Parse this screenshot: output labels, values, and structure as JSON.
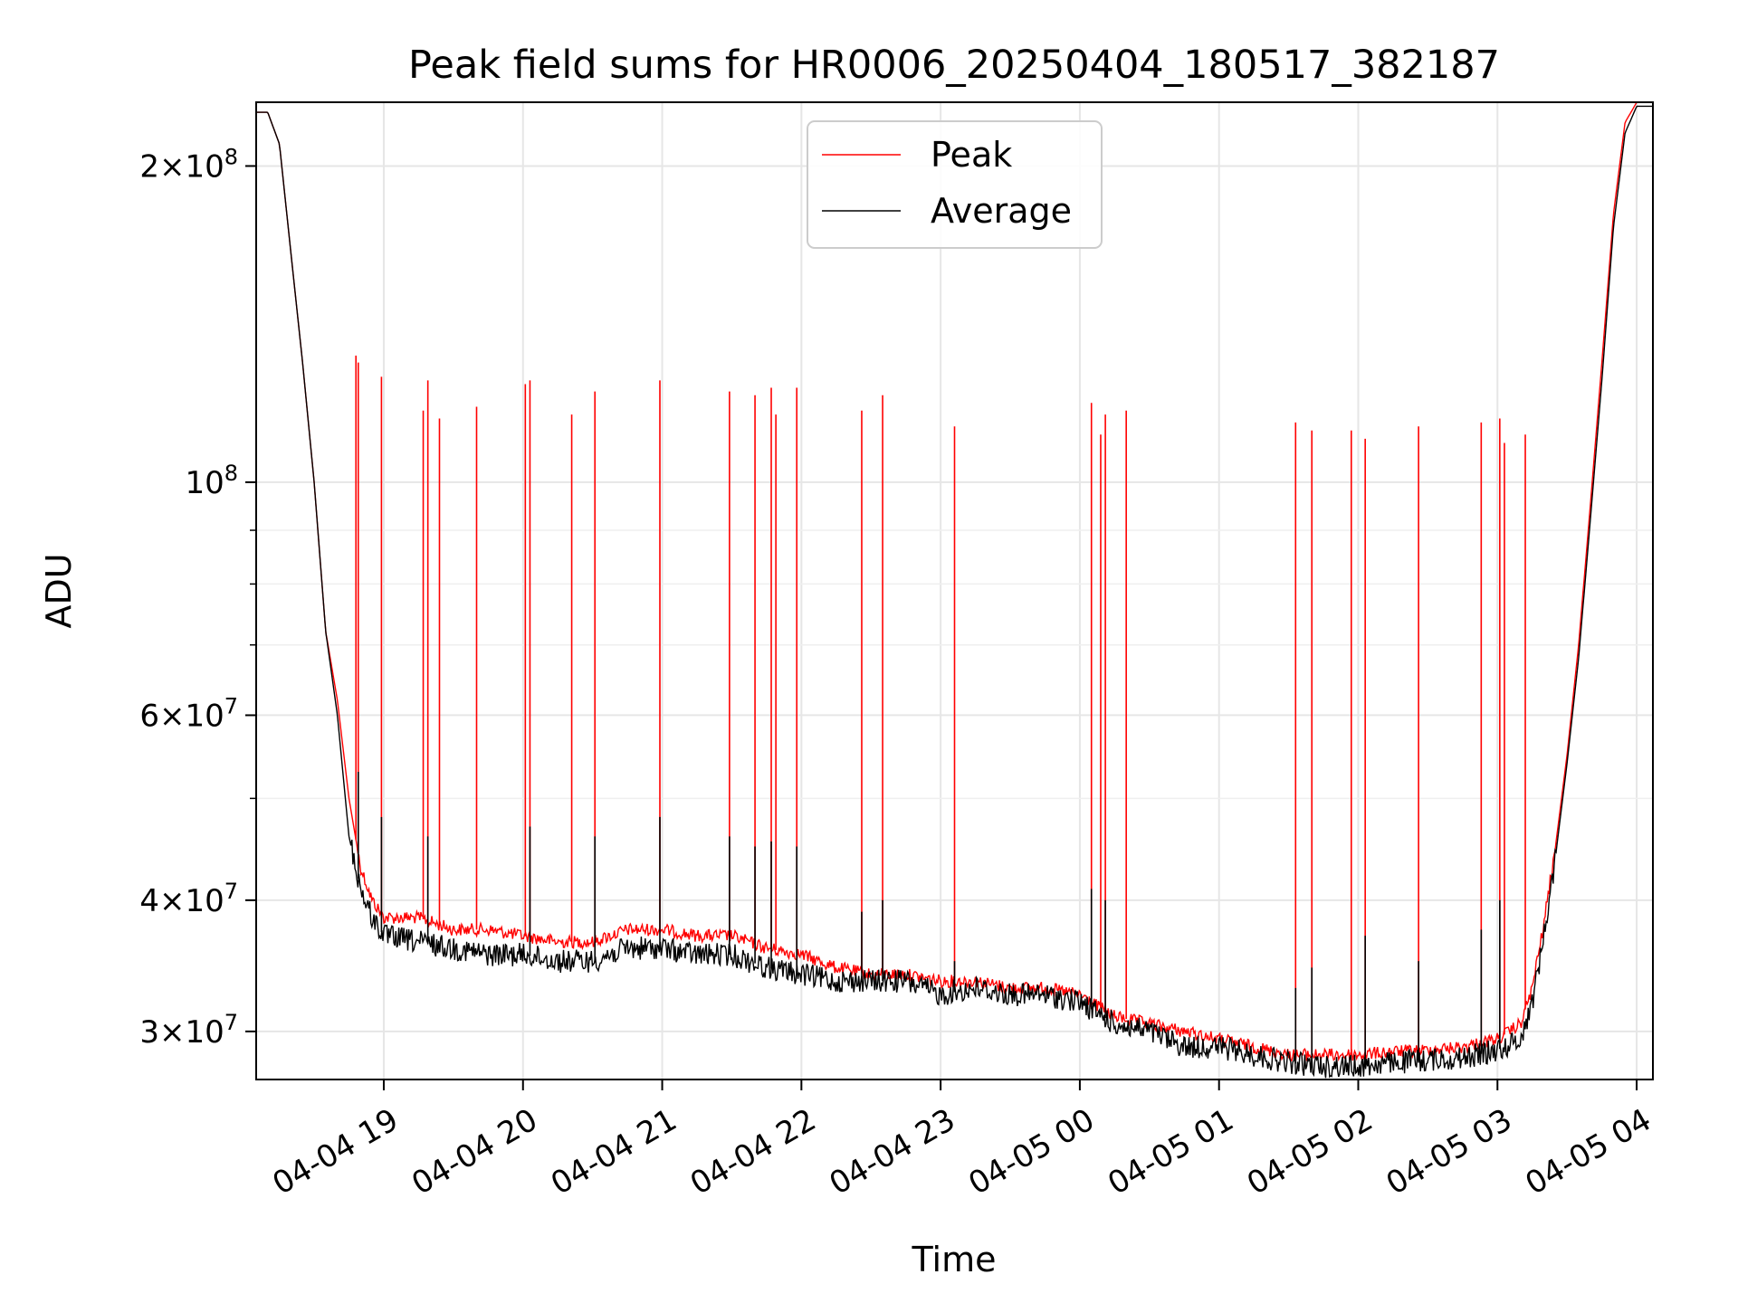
{
  "chart_data": {
    "type": "line",
    "title": "Peak field sums for HR0006_20250404_180517_382187",
    "xlabel": "Time",
    "ylabel": "ADU",
    "y_scale": "log",
    "ylim": [
      27000000,
      230000000
    ],
    "xlim": [
      "2025-04-04 18:05",
      "2025-04-05 04:07"
    ],
    "grid": true,
    "legend_position": "top-center",
    "x_ticks": [
      {
        "value": "2025-04-04 19:00",
        "label": "04-04 19"
      },
      {
        "value": "2025-04-04 20:00",
        "label": "04-04 20"
      },
      {
        "value": "2025-04-04 21:00",
        "label": "04-04 21"
      },
      {
        "value": "2025-04-04 22:00",
        "label": "04-04 22"
      },
      {
        "value": "2025-04-04 23:00",
        "label": "04-04 23"
      },
      {
        "value": "2025-04-05 00:00",
        "label": "04-05 00"
      },
      {
        "value": "2025-04-05 01:00",
        "label": "04-05 01"
      },
      {
        "value": "2025-04-05 02:00",
        "label": "04-05 02"
      },
      {
        "value": "2025-04-05 03:00",
        "label": "04-05 03"
      },
      {
        "value": "2025-04-05 04:00",
        "label": "04-05 04"
      }
    ],
    "y_ticks": [
      {
        "value": 30000000,
        "coef": "3",
        "exp": "7"
      },
      {
        "value": 40000000,
        "coef": "4",
        "exp": "7"
      },
      {
        "value": 60000000,
        "coef": "6",
        "exp": "7"
      },
      {
        "value": 100000000,
        "coef": "",
        "exp": "8"
      },
      {
        "value": 200000000,
        "coef": "2",
        "exp": "8"
      }
    ],
    "y_minor_ticks": [
      50000000,
      70000000,
      80000000,
      90000000
    ],
    "series": [
      {
        "name": "Peak",
        "color": "#ff0000",
        "x": [
          "2025-04-04 18:05",
          "2025-04-04 18:10",
          "2025-04-04 18:15",
          "2025-04-04 18:20",
          "2025-04-04 18:25",
          "2025-04-04 18:30",
          "2025-04-04 18:35",
          "2025-04-04 18:40",
          "2025-04-04 18:45",
          "2025-04-04 18:50",
          "2025-04-04 18:55",
          "2025-04-04 19:00",
          "2025-04-04 19:15",
          "2025-04-04 19:30",
          "2025-04-04 19:45",
          "2025-04-04 20:00",
          "2025-04-04 20:15",
          "2025-04-04 20:30",
          "2025-04-04 20:45",
          "2025-04-04 21:00",
          "2025-04-04 21:15",
          "2025-04-04 21:30",
          "2025-04-04 21:45",
          "2025-04-04 22:00",
          "2025-04-04 22:15",
          "2025-04-04 22:30",
          "2025-04-04 22:45",
          "2025-04-04 23:00",
          "2025-04-04 23:15",
          "2025-04-04 23:30",
          "2025-04-04 23:45",
          "2025-04-05 00:00",
          "2025-04-05 00:15",
          "2025-04-05 00:30",
          "2025-04-05 00:45",
          "2025-04-05 01:00",
          "2025-04-05 01:15",
          "2025-04-05 01:30",
          "2025-04-05 01:45",
          "2025-04-05 02:00",
          "2025-04-05 02:15",
          "2025-04-05 02:30",
          "2025-04-05 02:45",
          "2025-04-05 03:00",
          "2025-04-05 03:10",
          "2025-04-05 03:15",
          "2025-04-05 03:20",
          "2025-04-05 03:25",
          "2025-04-05 03:30",
          "2025-04-05 03:35",
          "2025-04-05 03:40",
          "2025-04-05 03:45",
          "2025-04-05 03:50",
          "2025-04-05 03:55",
          "2025-04-05 04:00",
          "2025-04-05 04:07"
        ],
        "values": [
          225000000,
          225000000,
          210000000,
          165000000,
          130000000,
          100000000,
          72000000,
          62000000,
          50000000,
          43000000,
          40000000,
          38500000,
          38500000,
          37500000,
          37500000,
          37000000,
          36500000,
          36500000,
          37500000,
          37500000,
          37000000,
          37000000,
          36000000,
          35500000,
          34500000,
          34000000,
          34000000,
          33500000,
          33500000,
          33000000,
          33000000,
          32500000,
          31000000,
          30500000,
          30000000,
          29500000,
          29000000,
          28500000,
          28500000,
          28500000,
          28700000,
          28800000,
          29000000,
          29500000,
          30500000,
          33000000,
          38000000,
          45000000,
          55000000,
          70000000,
          95000000,
          130000000,
          180000000,
          220000000,
          230000000,
          230000000
        ],
        "spikes": [
          {
            "x": "2025-04-04 18:48",
            "y": 132000000
          },
          {
            "x": "2025-04-04 18:49",
            "y": 130000000
          },
          {
            "x": "2025-04-04 18:59",
            "y": 126000000
          },
          {
            "x": "2025-04-04 19:17",
            "y": 117000000
          },
          {
            "x": "2025-04-04 19:19",
            "y": 125000000
          },
          {
            "x": "2025-04-04 19:24",
            "y": 115000000
          },
          {
            "x": "2025-04-04 19:40",
            "y": 118000000
          },
          {
            "x": "2025-04-04 20:01",
            "y": 124000000
          },
          {
            "x": "2025-04-04 20:03",
            "y": 125000000
          },
          {
            "x": "2025-04-04 20:21",
            "y": 116000000
          },
          {
            "x": "2025-04-04 20:31",
            "y": 122000000
          },
          {
            "x": "2025-04-04 20:59",
            "y": 125000000
          },
          {
            "x": "2025-04-04 21:29",
            "y": 122000000
          },
          {
            "x": "2025-04-04 21:40",
            "y": 121000000
          },
          {
            "x": "2025-04-04 21:47",
            "y": 123000000
          },
          {
            "x": "2025-04-04 21:49",
            "y": 116000000
          },
          {
            "x": "2025-04-04 21:58",
            "y": 123000000
          },
          {
            "x": "2025-04-04 22:26",
            "y": 117000000
          },
          {
            "x": "2025-04-04 22:35",
            "y": 121000000
          },
          {
            "x": "2025-04-04 23:06",
            "y": 113000000
          },
          {
            "x": "2025-04-05 00:05",
            "y": 119000000
          },
          {
            "x": "2025-04-05 00:09",
            "y": 111000000
          },
          {
            "x": "2025-04-05 00:11",
            "y": 116000000
          },
          {
            "x": "2025-04-05 00:20",
            "y": 117000000
          },
          {
            "x": "2025-04-05 01:33",
            "y": 114000000
          },
          {
            "x": "2025-04-05 01:40",
            "y": 112000000
          },
          {
            "x": "2025-04-05 01:57",
            "y": 112000000
          },
          {
            "x": "2025-04-05 02:03",
            "y": 110000000
          },
          {
            "x": "2025-04-05 02:26",
            "y": 113000000
          },
          {
            "x": "2025-04-05 02:53",
            "y": 114000000
          },
          {
            "x": "2025-04-05 03:01",
            "y": 115000000
          },
          {
            "x": "2025-04-05 03:03",
            "y": 109000000
          },
          {
            "x": "2025-04-05 03:12",
            "y": 111000000
          }
        ]
      },
      {
        "name": "Average",
        "color": "#000000",
        "x": [
          "2025-04-04 18:05",
          "2025-04-04 18:10",
          "2025-04-04 18:15",
          "2025-04-04 18:20",
          "2025-04-04 18:25",
          "2025-04-04 18:30",
          "2025-04-04 18:35",
          "2025-04-04 18:40",
          "2025-04-04 18:45",
          "2025-04-04 18:50",
          "2025-04-04 18:55",
          "2025-04-04 19:00",
          "2025-04-04 19:15",
          "2025-04-04 19:30",
          "2025-04-04 19:45",
          "2025-04-04 20:00",
          "2025-04-04 20:15",
          "2025-04-04 20:30",
          "2025-04-04 20:45",
          "2025-04-04 21:00",
          "2025-04-04 21:15",
          "2025-04-04 21:30",
          "2025-04-04 21:45",
          "2025-04-04 22:00",
          "2025-04-04 22:15",
          "2025-04-04 22:30",
          "2025-04-04 22:45",
          "2025-04-04 23:00",
          "2025-04-04 23:15",
          "2025-04-04 23:30",
          "2025-04-04 23:45",
          "2025-04-05 00:00",
          "2025-04-05 00:15",
          "2025-04-05 00:30",
          "2025-04-05 00:45",
          "2025-04-05 01:00",
          "2025-04-05 01:15",
          "2025-04-05 01:30",
          "2025-04-05 01:45",
          "2025-04-05 02:00",
          "2025-04-05 02:15",
          "2025-04-05 02:30",
          "2025-04-05 02:45",
          "2025-04-05 03:00",
          "2025-04-05 03:10",
          "2025-04-05 03:15",
          "2025-04-05 03:20",
          "2025-04-05 03:25",
          "2025-04-05 03:30",
          "2025-04-05 03:35",
          "2025-04-05 03:40",
          "2025-04-05 03:45",
          "2025-04-05 03:50",
          "2025-04-05 03:55",
          "2025-04-05 04:00",
          "2025-04-05 04:07"
        ],
        "values": [
          225000000,
          225000000,
          210000000,
          165000000,
          130000000,
          100000000,
          72000000,
          60000000,
          46000000,
          41000000,
          38500000,
          37000000,
          36500000,
          36000000,
          35500000,
          35500000,
          35000000,
          35000000,
          36000000,
          36000000,
          35500000,
          35500000,
          34500000,
          34000000,
          33500000,
          33500000,
          33500000,
          32500000,
          33000000,
          32500000,
          32500000,
          32000000,
          30500000,
          30000000,
          29000000,
          29000000,
          28500000,
          28000000,
          27800000,
          27800000,
          28000000,
          28200000,
          28300000,
          28800000,
          29500000,
          32000000,
          37000000,
          44000000,
          54000000,
          68000000,
          92000000,
          125000000,
          175000000,
          215000000,
          228000000,
          228000000
        ],
        "spikes": [
          {
            "x": "2025-04-04 18:49",
            "y": 53000000
          },
          {
            "x": "2025-04-04 18:59",
            "y": 48000000
          },
          {
            "x": "2025-04-04 19:19",
            "y": 46000000
          },
          {
            "x": "2025-04-04 20:03",
            "y": 47000000
          },
          {
            "x": "2025-04-04 20:31",
            "y": 46000000
          },
          {
            "x": "2025-04-04 20:59",
            "y": 48000000
          },
          {
            "x": "2025-04-04 21:29",
            "y": 46000000
          },
          {
            "x": "2025-04-04 21:40",
            "y": 45000000
          },
          {
            "x": "2025-04-04 21:47",
            "y": 45500000
          },
          {
            "x": "2025-04-04 21:58",
            "y": 45000000
          },
          {
            "x": "2025-04-04 22:26",
            "y": 39000000
          },
          {
            "x": "2025-04-04 22:35",
            "y": 40000000
          },
          {
            "x": "2025-04-04 23:06",
            "y": 35000000
          },
          {
            "x": "2025-04-05 00:05",
            "y": 41000000
          },
          {
            "x": "2025-04-05 00:11",
            "y": 40000000
          },
          {
            "x": "2025-04-05 01:33",
            "y": 33000000
          },
          {
            "x": "2025-04-05 01:40",
            "y": 34500000
          },
          {
            "x": "2025-04-05 02:03",
            "y": 37000000
          },
          {
            "x": "2025-04-05 02:26",
            "y": 35000000
          },
          {
            "x": "2025-04-05 02:53",
            "y": 37500000
          },
          {
            "x": "2025-04-05 03:01",
            "y": 40000000
          }
        ]
      }
    ]
  }
}
